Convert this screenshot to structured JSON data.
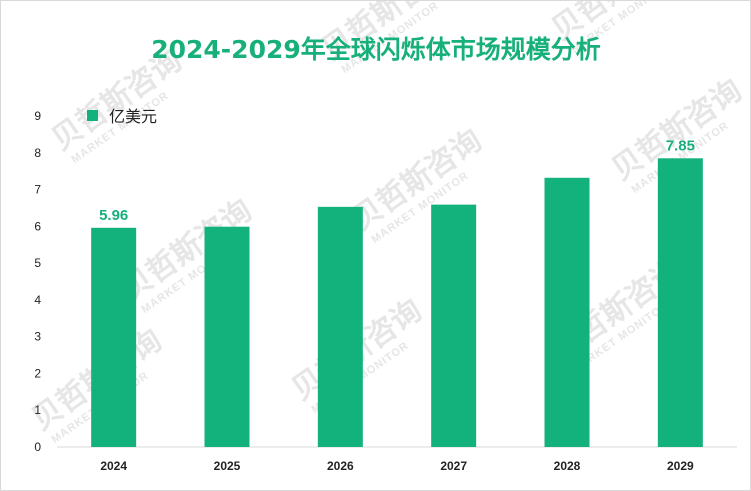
{
  "chart_data": {
    "type": "bar",
    "title": "2024-2029年全球闪烁体市场规模分析",
    "categories": [
      "2024",
      "2025",
      "2026",
      "2027",
      "2028",
      "2029"
    ],
    "series": [
      {
        "name": "亿美元",
        "values": [
          5.96,
          5.99,
          6.53,
          6.59,
          7.32,
          7.85
        ]
      }
    ],
    "data_labels": [
      {
        "category": "2024",
        "text": "5.96"
      },
      {
        "category": "2029",
        "text": "7.85"
      }
    ],
    "yticks": [
      "0",
      "1",
      "2",
      "3",
      "4",
      "5",
      "6",
      "7",
      "8",
      "9"
    ],
    "ylim": [
      0,
      9
    ],
    "xlabel": "",
    "ylabel": "",
    "grid": false,
    "legend_position": "top-left",
    "bar_color": "#13b27c",
    "title_color": "#18b07a"
  },
  "watermark": {
    "text": "贝哲斯咨询",
    "subtext": "MARKET MONITOR"
  }
}
